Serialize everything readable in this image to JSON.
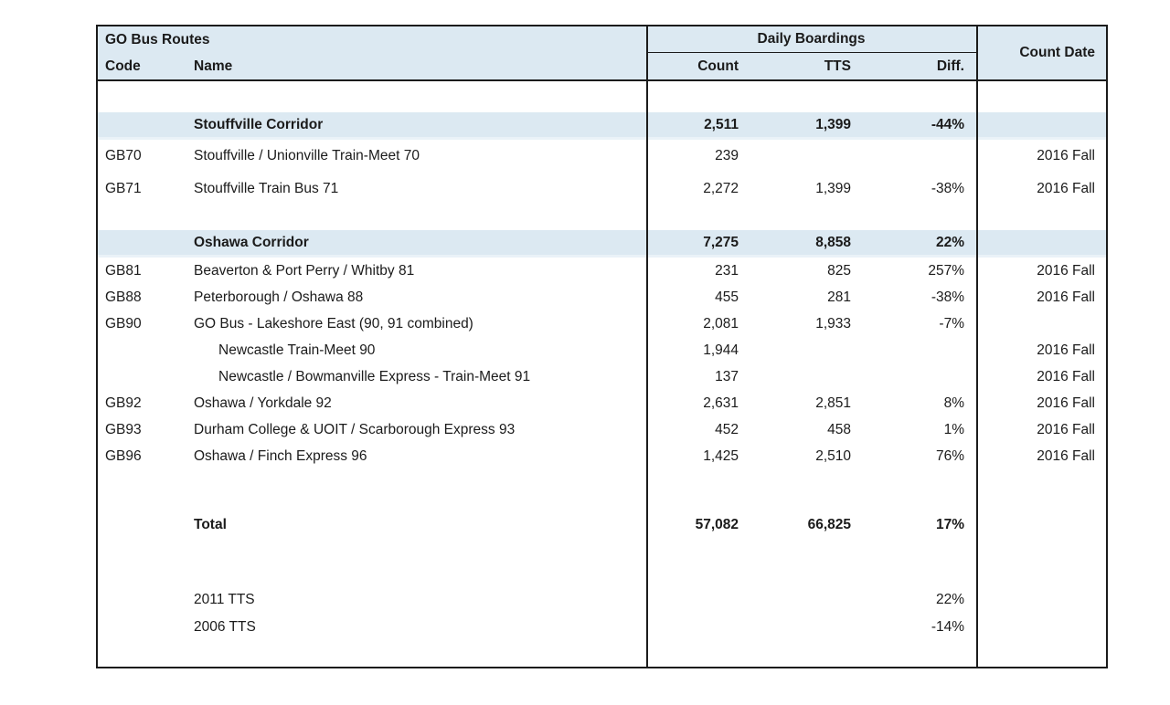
{
  "table": {
    "header": {
      "group_left": "GO Bus Routes",
      "group_boardings": "Daily Boardings",
      "col_code": "Code",
      "col_name": "Name",
      "col_count": "Count",
      "col_tts": "TTS",
      "col_diff": "Diff.",
      "col_count_date": "Count Date"
    },
    "colors": {
      "highlight_blue": "#dce9f2",
      "border_black": "#1b1b1b",
      "text": "#1b1b1b"
    },
    "rows": [
      {
        "type": "spacer",
        "h": 34
      },
      {
        "type": "section",
        "name": "Stouffville Corridor",
        "count": "2,511",
        "tts": "1,399",
        "diff": "-44%",
        "date": "",
        "h": 30
      },
      {
        "type": "route",
        "code": "GB70",
        "name": "Stouffville / Unionville Train-Meet 70",
        "count": "239",
        "tts": "",
        "diff": "",
        "date": "2016 Fall",
        "h": 36
      },
      {
        "type": "route",
        "code": "GB71",
        "name": "Stouffville Train Bus 71",
        "count": "2,272",
        "tts": "1,399",
        "diff": "-38%",
        "date": "2016 Fall",
        "h": 36
      },
      {
        "type": "spacer",
        "h": 27
      },
      {
        "type": "section",
        "name": "Oshawa Corridor",
        "count": "7,275",
        "tts": "8,858",
        "diff": "22%",
        "date": "",
        "h": 30
      },
      {
        "type": "route",
        "code": "GB81",
        "name": "Beaverton & Port Perry / Whitby 81",
        "count": "231",
        "tts": "825",
        "diff": "257%",
        "date": "2016 Fall",
        "h": 29
      },
      {
        "type": "route",
        "code": "GB88",
        "name": "Peterborough / Oshawa 88",
        "count": "455",
        "tts": "281",
        "diff": "-38%",
        "date": "2016 Fall",
        "h": 29
      },
      {
        "type": "route",
        "code": "GB90",
        "name": "GO Bus - Lakeshore East (90, 91 combined)",
        "count": "2,081",
        "tts": "1,933",
        "diff": "-7%",
        "date": "",
        "h": 29
      },
      {
        "type": "subroute",
        "code": "",
        "name": "Newcastle Train-Meet 90",
        "count": "1,944",
        "tts": "",
        "diff": "",
        "date": "2016 Fall",
        "h": 29
      },
      {
        "type": "subroute",
        "code": "",
        "name": "Newcastle / Bowmanville Express - Train-Meet 91",
        "count": "137",
        "tts": "",
        "diff": "",
        "date": "2016 Fall",
        "h": 29
      },
      {
        "type": "route",
        "code": "GB92",
        "name": "Oshawa / Yorkdale 92",
        "count": "2,631",
        "tts": "2,851",
        "diff": "8%",
        "date": "2016 Fall",
        "h": 29
      },
      {
        "type": "route",
        "code": "GB93",
        "name": "Durham College & UOIT / Scarborough Express 93",
        "count": "452",
        "tts": "458",
        "diff": "1%",
        "date": "2016 Fall",
        "h": 29
      },
      {
        "type": "route",
        "code": "GB96",
        "name": "Oshawa / Finch Express 96",
        "count": "1,425",
        "tts": "2,510",
        "diff": "76%",
        "date": "2016 Fall",
        "h": 29
      },
      {
        "type": "spacer",
        "h": 46
      },
      {
        "type": "total",
        "code": "",
        "name": "Total",
        "count": "57,082",
        "tts": "66,825",
        "diff": "17%",
        "date": "",
        "h": 30
      },
      {
        "type": "spacer",
        "h": 52
      },
      {
        "type": "note",
        "code": "",
        "name": "2011 TTS",
        "count": "",
        "tts": "",
        "diff": "22%",
        "date": "",
        "h": 30
      },
      {
        "type": "note",
        "code": "",
        "name": "2006 TTS",
        "count": "",
        "tts": "",
        "diff": "-14%",
        "date": "",
        "h": 30
      },
      {
        "type": "spacer",
        "h": 28
      }
    ]
  }
}
